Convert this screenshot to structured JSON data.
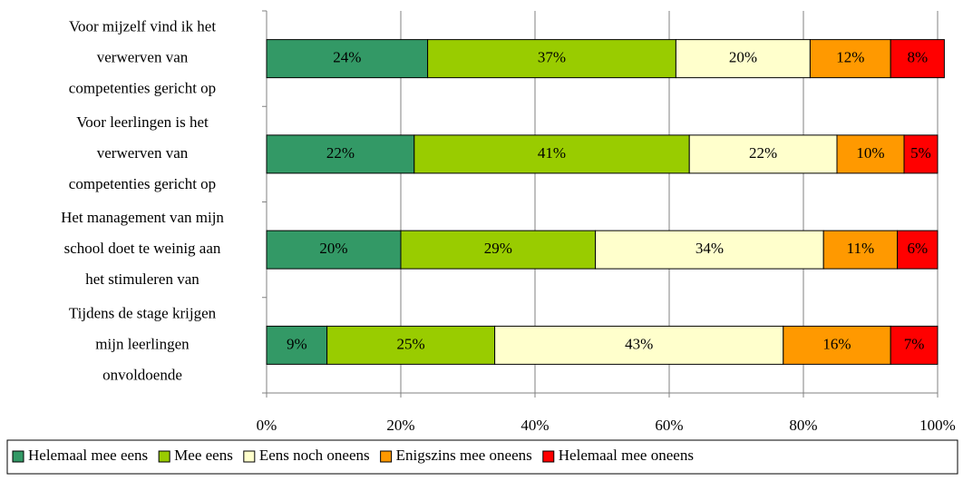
{
  "chart_data": {
    "type": "stacked-bar-horizontal",
    "categories": [
      [
        "Voor mijzelf vind ik het",
        "verwerven van",
        "competenties gericht op"
      ],
      [
        "Voor leerlingen is het",
        "verwerven van",
        "competenties gericht op"
      ],
      [
        "Het management van mijn",
        "school doet te weinig aan",
        "het stimuleren van"
      ],
      [
        "Tijdens de stage krijgen",
        "mijn leerlingen",
        "onvoldoende"
      ]
    ],
    "series": [
      {
        "name": "Helemaal mee eens",
        "color": "#339966",
        "values": [
          24,
          22,
          20,
          9
        ],
        "value_labels": [
          "24%",
          "22%",
          "20%",
          "9%"
        ]
      },
      {
        "name": "Mee eens",
        "color": "#99cc00",
        "values": [
          37,
          41,
          29,
          25
        ],
        "value_labels": [
          "37%",
          "41%",
          "29%",
          "25%"
        ]
      },
      {
        "name": "Eens noch oneens",
        "color": "#ffffcc",
        "values": [
          20,
          22,
          34,
          43
        ],
        "value_labels": [
          "20%",
          "22%",
          "34%",
          "43%"
        ]
      },
      {
        "name": "Enigszins mee oneens",
        "color": "#ff9900",
        "values": [
          12,
          10,
          11,
          16
        ],
        "value_labels": [
          "12%",
          "10%",
          "11%",
          "16%"
        ]
      },
      {
        "name": "Helemaal mee oneens",
        "color": "#ff0000",
        "values": [
          8,
          5,
          6,
          7
        ],
        "value_labels": [
          "8%",
          "5%",
          "6%",
          "7%"
        ]
      }
    ],
    "xlim": [
      0,
      100
    ],
    "xticks": [
      {
        "value": 0,
        "label": "0%"
      },
      {
        "value": 20,
        "label": "20%"
      },
      {
        "value": 40,
        "label": "40%"
      },
      {
        "value": 60,
        "label": "60%"
      },
      {
        "value": 80,
        "label": "80%"
      },
      {
        "value": 100,
        "label": "100%"
      }
    ],
    "grid": true,
    "legend": "bottom"
  }
}
